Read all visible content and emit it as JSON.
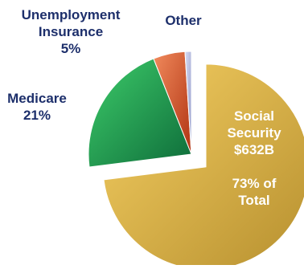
{
  "chart_data": {
    "type": "pie",
    "slices": [
      {
        "name": "Social Security",
        "value": 73,
        "color_light": "#f5cf63",
        "color_dark": "#b7902f",
        "exploded": true,
        "label_lines": [
          "Social",
          "Security",
          "$632B",
          "",
          "73% of",
          "Total"
        ],
        "label_color": "#ffffff"
      },
      {
        "name": "Medicare",
        "value": 21,
        "color_light": "#3dcc6a",
        "color_dark": "#0e6c3a",
        "exploded": false,
        "label_lines": [
          "Medicare",
          "21%"
        ],
        "label_color": "#1d2f6b"
      },
      {
        "name": "Unemployment Insurance",
        "value": 5,
        "color_light": "#f18a5c",
        "color_dark": "#b03312",
        "exploded": false,
        "label_lines": [
          "Unemployment",
          "Insurance",
          "5%"
        ],
        "label_color": "#1d2f6b"
      },
      {
        "name": "Other",
        "value": 1,
        "color_light": "#d9ddf3",
        "color_dark": "#8e96c8",
        "exploded": false,
        "label_lines": [
          "Other"
        ],
        "label_color": "#1d2f6b"
      }
    ],
    "start_angle_deg": 0,
    "direction": "clockwise"
  }
}
